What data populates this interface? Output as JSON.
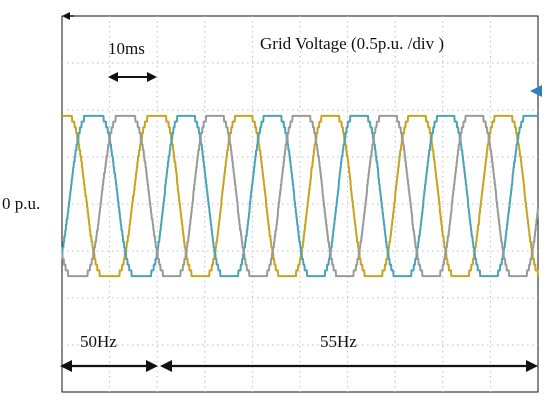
{
  "chart_data": {
    "type": "line",
    "title": "Grid Voltage (0.5p.u. /div )",
    "zero_label": "0 p.u.",
    "time_annotation": "10ms",
    "segments": [
      {
        "label": "50Hz",
        "frequency_hz": 50,
        "t_start_ms": 0,
        "t_end_ms": 20
      },
      {
        "label": "55Hz",
        "frequency_hz": 55,
        "t_start_ms": 20,
        "t_end_ms": 100
      }
    ],
    "x_range_ms": [
      0,
      100
    ],
    "y_range_pu": [
      -1.5,
      1.5
    ],
    "grid": true,
    "series": [
      {
        "phase_deg": 0,
        "amplitude_pu": 1.0,
        "color": "#c8a41f"
      },
      {
        "phase_deg": -120,
        "amplitude_pu": 1.0,
        "color": "#4aa3b8"
      },
      {
        "phase_deg": 120,
        "amplitude_pu": 1.0,
        "color": "#9a9a9a"
      }
    ]
  },
  "colors": {
    "grid": "#b8c2c8",
    "axis": "#111111",
    "background": "#ffffff",
    "marker": "#2f7fc0"
  }
}
